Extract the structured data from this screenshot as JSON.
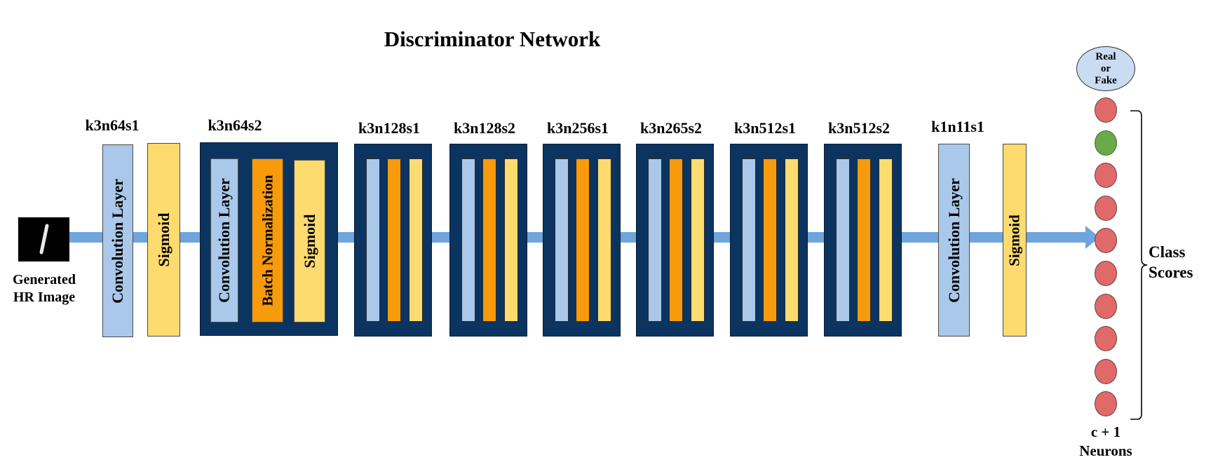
{
  "title": "Discriminator Network",
  "input": {
    "label_line1": "Generated",
    "label_line2": "HR Image"
  },
  "layers": {
    "l1_label": "k3n64s1",
    "l1_conv": "Convolution Layer",
    "l1_sig": "Sigmoid",
    "l2_label": "k3n64s2",
    "l2_conv": "Convolution Layer",
    "l2_bn": "Batch Normalization",
    "l2_sig": "Sigmoid",
    "b1_label": "k3n128s1",
    "b2_label": "k3n128s2",
    "b3_label": "k3n256s1",
    "b4_label": "k3n265s2",
    "b5_label": "k3n512s1",
    "b6_label": "k3n512s2",
    "last_label": "k1n11s1",
    "last_conv": "Convolution Layer",
    "last_sig": "Sigmoid"
  },
  "output": {
    "bubble_line1": "Real",
    "bubble_line2": "or",
    "bubble_line3": "Fake",
    "neurons": [
      "red",
      "green",
      "red",
      "red",
      "red",
      "red",
      "red",
      "red",
      "red",
      "red"
    ],
    "class_scores_line1": "Class",
    "class_scores_line2": "Scores",
    "neurons_caption_line1": "c + 1",
    "neurons_caption_line2": "Neurons"
  },
  "colors": {
    "arrow": "#6fa4dc",
    "block": "#0b3560",
    "conv": "#a9c8ea",
    "sigmoid": "#fedb6e",
    "batchnorm": "#f79a0c",
    "neuron_red": "#e06a6a",
    "neuron_green": "#6aaa4a"
  }
}
